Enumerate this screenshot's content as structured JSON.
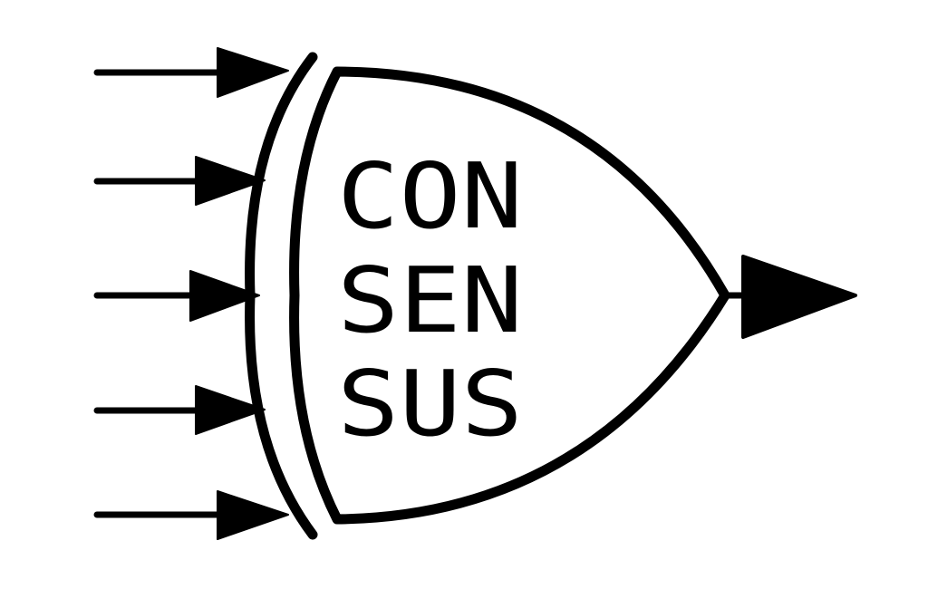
{
  "diagram": {
    "gate_text": {
      "line1": "CON",
      "line2": "SEN",
      "line3": "SUS"
    },
    "input_count": 5,
    "output_count": 1,
    "stroke_color": "#000000",
    "background_color": "#ffffff"
  }
}
